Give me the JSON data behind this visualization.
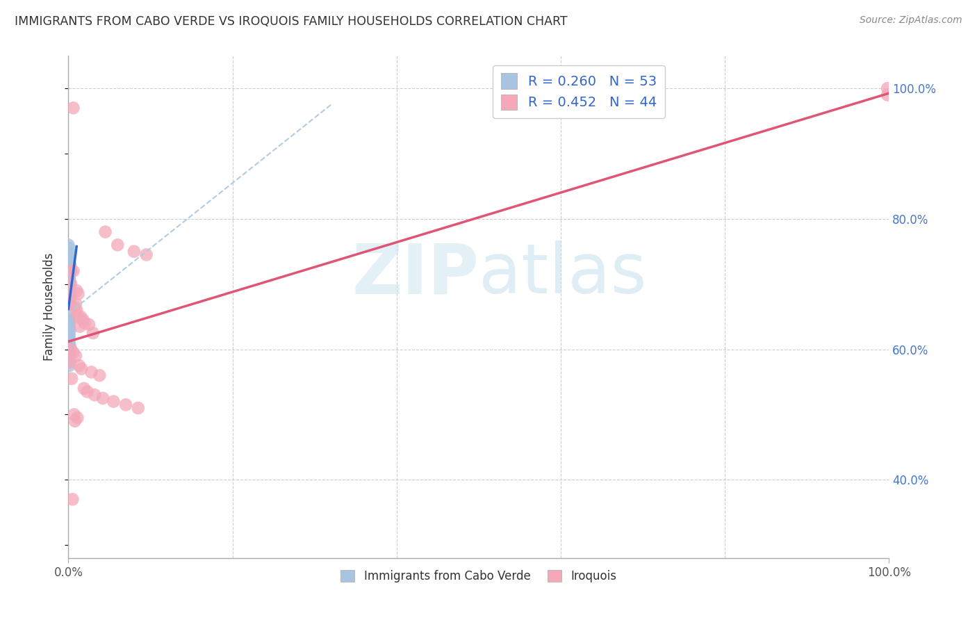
{
  "title": "IMMIGRANTS FROM CABO VERDE VS IROQUOIS FAMILY HOUSEHOLDS CORRELATION CHART",
  "source": "Source: ZipAtlas.com",
  "ylabel": "Family Households",
  "legend_r1": "R = 0.260",
  "legend_n1": "N = 53",
  "legend_r2": "R = 0.452",
  "legend_n2": "N = 44",
  "blue_color": "#a8c4e0",
  "pink_color": "#f4a8b8",
  "blue_line_color": "#3366cc",
  "pink_line_color": "#e05575",
  "blue_dash_color": "#b0cce0",
  "blue_x": [
    0.0,
    0.001,
    0.001,
    0.001,
    0.001,
    0.002,
    0.002,
    0.002,
    0.002,
    0.003,
    0.001,
    0.001,
    0.001,
    0.001,
    0.001,
    0.001,
    0.002,
    0.001,
    0.001,
    0.001,
    0.001,
    0.001,
    0.002,
    0.003,
    0.001,
    0.001,
    0.001,
    0.001,
    0.001,
    0.002,
    0.001,
    0.001,
    0.001,
    0.002,
    0.001,
    0.001,
    0.001,
    0.001,
    0.001,
    0.001,
    0.001,
    0.001,
    0.002,
    0.001,
    0.001,
    0.001,
    0.001,
    0.002,
    0.001,
    0.001,
    0.001,
    0.001,
    0.001
  ],
  "blue_y": [
    0.76,
    0.755,
    0.748,
    0.74,
    0.735,
    0.73,
    0.728,
    0.725,
    0.722,
    0.72,
    0.718,
    0.715,
    0.712,
    0.71,
    0.708,
    0.705,
    0.703,
    0.7,
    0.698,
    0.695,
    0.692,
    0.69,
    0.688,
    0.685,
    0.682,
    0.68,
    0.678,
    0.675,
    0.672,
    0.67,
    0.668,
    0.665,
    0.662,
    0.66,
    0.658,
    0.655,
    0.652,
    0.648,
    0.645,
    0.64,
    0.638,
    0.635,
    0.63,
    0.625,
    0.62,
    0.615,
    0.61,
    0.605,
    0.6,
    0.595,
    0.59,
    0.582,
    0.575
  ],
  "pink_x": [
    0.006,
    0.001,
    0.003,
    0.01,
    0.012,
    0.01,
    0.009,
    0.007,
    0.008,
    0.006,
    0.015,
    0.012,
    0.018,
    0.02,
    0.025,
    0.014,
    0.003,
    0.03,
    0.045,
    0.06,
    0.08,
    0.095,
    0.003,
    0.006,
    0.009,
    0.002,
    0.013,
    0.016,
    0.028,
    0.038,
    0.004,
    0.007,
    0.011,
    0.008,
    0.005,
    0.019,
    0.023,
    0.032,
    0.042,
    0.055,
    0.07,
    0.085,
    0.998,
    0.998
  ],
  "pink_y": [
    0.97,
    0.68,
    0.72,
    0.69,
    0.685,
    0.66,
    0.67,
    0.665,
    0.66,
    0.72,
    0.65,
    0.65,
    0.645,
    0.64,
    0.638,
    0.635,
    0.7,
    0.625,
    0.78,
    0.76,
    0.75,
    0.745,
    0.6,
    0.595,
    0.59,
    0.58,
    0.575,
    0.57,
    0.565,
    0.56,
    0.555,
    0.5,
    0.495,
    0.49,
    0.37,
    0.54,
    0.535,
    0.53,
    0.525,
    0.52,
    0.515,
    0.51,
    1.0,
    0.99
  ],
  "ylim": [
    0.28,
    1.05
  ],
  "xlim": [
    0.0,
    1.0
  ],
  "ytick_positions": [
    0.4,
    0.6,
    0.8,
    1.0
  ],
  "ytick_labels": [
    "40.0%",
    "60.0%",
    "80.0%",
    "100.0%"
  ],
  "xtick_positions": [
    0.0,
    0.2,
    0.4,
    0.6,
    0.8,
    1.0
  ]
}
